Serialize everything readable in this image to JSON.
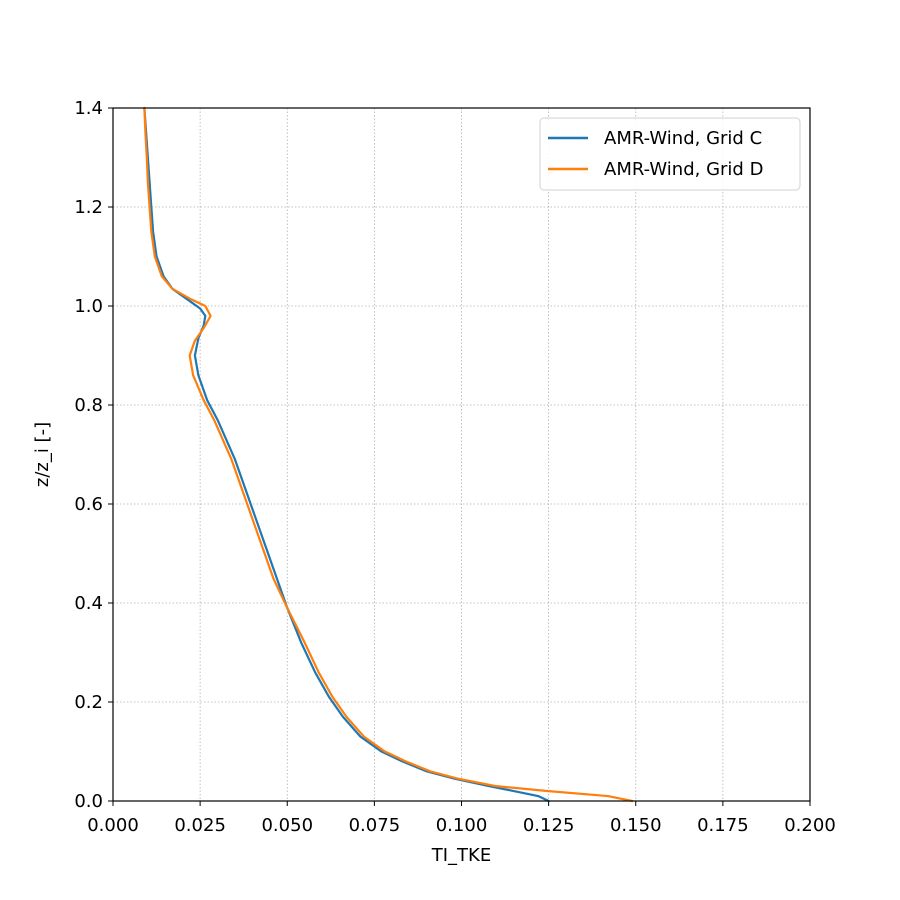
{
  "chart_data": {
    "type": "line",
    "title": "",
    "xlabel": "TI_TKE",
    "ylabel": "z/z_i [-]",
    "xlim": [
      0.0,
      0.2
    ],
    "ylim": [
      0.0,
      1.4
    ],
    "xticks": [
      "0.000",
      "0.025",
      "0.050",
      "0.075",
      "0.100",
      "0.125",
      "0.150",
      "0.175",
      "0.200"
    ],
    "yticks": [
      "0.0",
      "0.2",
      "0.4",
      "0.6",
      "0.8",
      "1.0",
      "1.2",
      "1.4"
    ],
    "grid": true,
    "legend_position": "top-right",
    "series": [
      {
        "name": "AMR-Wind, Grid C",
        "color": "#1f77b4",
        "points": [
          [
            0.125,
            0.0
          ],
          [
            0.122,
            0.01
          ],
          [
            0.115,
            0.02
          ],
          [
            0.108,
            0.03
          ],
          [
            0.098,
            0.045
          ],
          [
            0.09,
            0.06
          ],
          [
            0.083,
            0.08
          ],
          [
            0.077,
            0.1
          ],
          [
            0.071,
            0.13
          ],
          [
            0.066,
            0.17
          ],
          [
            0.062,
            0.21
          ],
          [
            0.058,
            0.26
          ],
          [
            0.054,
            0.32
          ],
          [
            0.05,
            0.39
          ],
          [
            0.047,
            0.45
          ],
          [
            0.043,
            0.53
          ],
          [
            0.039,
            0.61
          ],
          [
            0.035,
            0.69
          ],
          [
            0.03,
            0.77
          ],
          [
            0.027,
            0.81
          ],
          [
            0.0245,
            0.86
          ],
          [
            0.0235,
            0.9
          ],
          [
            0.0245,
            0.935
          ],
          [
            0.026,
            0.96
          ],
          [
            0.0265,
            0.98
          ],
          [
            0.025,
            0.995
          ],
          [
            0.021,
            1.015
          ],
          [
            0.017,
            1.035
          ],
          [
            0.0145,
            1.06
          ],
          [
            0.0125,
            1.1
          ],
          [
            0.0115,
            1.15
          ],
          [
            0.011,
            1.2
          ],
          [
            0.0105,
            1.25
          ],
          [
            0.01,
            1.3
          ],
          [
            0.0095,
            1.35
          ],
          [
            0.009,
            1.4
          ]
        ]
      },
      {
        "name": "AMR-Wind, Grid D",
        "color": "#ff7f0e",
        "points": [
          [
            0.149,
            0.0
          ],
          [
            0.142,
            0.01
          ],
          [
            0.125,
            0.02
          ],
          [
            0.11,
            0.03
          ],
          [
            0.099,
            0.045
          ],
          [
            0.091,
            0.06
          ],
          [
            0.084,
            0.08
          ],
          [
            0.078,
            0.1
          ],
          [
            0.072,
            0.13
          ],
          [
            0.067,
            0.17
          ],
          [
            0.063,
            0.21
          ],
          [
            0.059,
            0.26
          ],
          [
            0.055,
            0.32
          ],
          [
            0.05,
            0.39
          ],
          [
            0.046,
            0.45
          ],
          [
            0.042,
            0.53
          ],
          [
            0.038,
            0.61
          ],
          [
            0.034,
            0.69
          ],
          [
            0.029,
            0.77
          ],
          [
            0.026,
            0.81
          ],
          [
            0.023,
            0.86
          ],
          [
            0.022,
            0.9
          ],
          [
            0.0235,
            0.93
          ],
          [
            0.026,
            0.955
          ],
          [
            0.028,
            0.98
          ],
          [
            0.0265,
            1.0
          ],
          [
            0.022,
            1.015
          ],
          [
            0.017,
            1.035
          ],
          [
            0.014,
            1.06
          ],
          [
            0.012,
            1.1
          ],
          [
            0.011,
            1.15
          ],
          [
            0.0105,
            1.2
          ],
          [
            0.01,
            1.25
          ],
          [
            0.0097,
            1.3
          ],
          [
            0.0093,
            1.35
          ],
          [
            0.009,
            1.4
          ]
        ]
      }
    ]
  }
}
